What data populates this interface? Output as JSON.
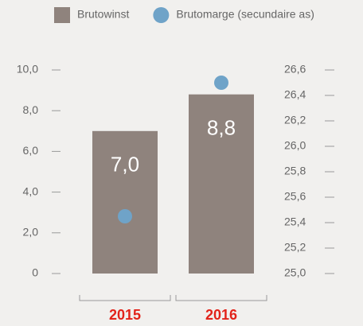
{
  "chart_data": {
    "type": "bar",
    "categories": [
      "2015",
      "2016"
    ],
    "series": [
      {
        "name": "Brutowinst",
        "color": "#8f837d",
        "values": [
          7.0,
          8.8
        ],
        "value_labels": [
          "7,0",
          "8,8"
        ]
      },
      {
        "name": "Brutomarge (secundaire as)",
        "color": "#6fa3c8",
        "type": "scatter",
        "axis": "y2",
        "values": [
          25.45,
          26.5
        ]
      }
    ],
    "ylim": [
      0,
      10
    ],
    "yticks": [
      0,
      {
        "value": 2,
        "label": "2,0"
      },
      {
        "value": 4,
        "label": "4,0"
      },
      {
        "value": 6,
        "label": "6,0"
      },
      {
        "value": 8,
        "label": "8,0"
      },
      {
        "value": 10,
        "label": "10,0"
      }
    ],
    "y2lim": [
      25.0,
      26.6
    ],
    "y2ticks": [
      {
        "value": 25.0,
        "label": "25,0"
      },
      {
        "value": 25.2,
        "label": "25,2"
      },
      {
        "value": 25.4,
        "label": "25,4"
      },
      {
        "value": 25.6,
        "label": "25,6"
      },
      {
        "value": 25.8,
        "label": "25,8"
      },
      {
        "value": 26.0,
        "label": "26,0"
      },
      {
        "value": 26.2,
        "label": "26,2"
      },
      {
        "value": 26.4,
        "label": "26,4"
      },
      {
        "value": 26.6,
        "label": "26,6"
      }
    ],
    "legend": "top",
    "grid": false
  }
}
